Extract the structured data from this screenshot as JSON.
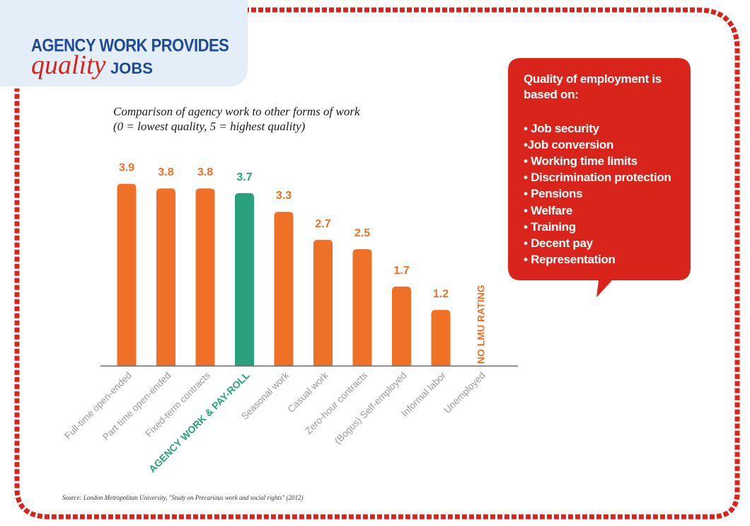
{
  "title": {
    "line1": "AGENCY WORK PROVIDES",
    "line2_emph": "quality",
    "line2_rest": "JOBS"
  },
  "subtitle": {
    "line1": "Comparison of agency work to other forms of work",
    "line2": "(0 = lowest quality, 5 = highest quality)"
  },
  "chart_data": {
    "type": "bar",
    "title": "Comparison of agency work to other forms of work",
    "subtitle": "(0 = lowest quality, 5 = highest quality)",
    "categories": [
      "Full-time open-ended",
      "Part time open-ended",
      "Fixed-term contracts",
      "AGENCY WORK & PAY-ROLL",
      "Seasonal work",
      "Casual work",
      "Zero-hour contracts",
      "(Bogus) Self-employed",
      "Informal labor",
      "Unemployed"
    ],
    "values": [
      3.9,
      3.8,
      3.8,
      3.7,
      3.3,
      2.7,
      2.5,
      1.7,
      1.2,
      null
    ],
    "value_labels": [
      "3.9",
      "3.8",
      "3.8",
      "3.7",
      "3.3",
      "2.7",
      "2.5",
      "1.7",
      "1.2",
      "NO LMU RATING"
    ],
    "highlight_index": 3,
    "ylim": [
      0,
      5
    ],
    "grid": false,
    "legend": "none"
  },
  "colors": {
    "bar": "#ee7127",
    "highlight_bar": "#2aa07f",
    "value_label": "#ee7127",
    "category_label": "#9a9a9a",
    "highlight_label": "#2aa07f",
    "brand_red": "#d9241c",
    "title_blue": "#1e4a9a"
  },
  "criteria": {
    "heading_line1": "Quality of employment is",
    "heading_line2": "based on:",
    "items": [
      "• Job security",
      "•Job conversion",
      "• Working time limits",
      "• Discrimination protection",
      "• Pensions",
      "• Welfare",
      "• Training",
      "• Decent pay",
      "• Representation"
    ]
  },
  "source": "Source: London Metropolitan University, \"Study on Precarious work and social rights\" (2012)"
}
